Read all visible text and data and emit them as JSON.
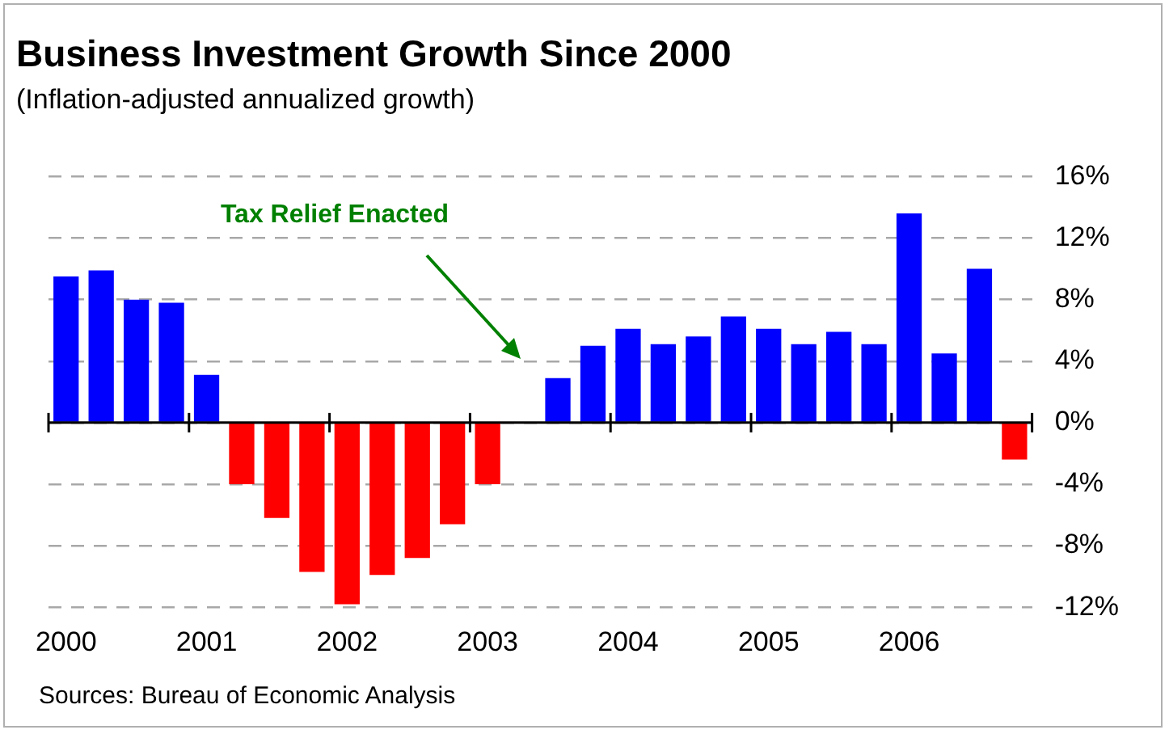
{
  "chart_data": {
    "type": "bar",
    "title": "Business Investment Growth Since 2000",
    "subtitle": "(Inflation-adjusted annualized growth)",
    "categories": [
      "2000",
      null,
      null,
      null,
      "2001",
      null,
      null,
      null,
      "2002",
      null,
      null,
      null,
      "2003",
      null,
      null,
      null,
      "2004",
      null,
      null,
      null,
      "2005",
      null,
      null,
      null,
      "2006",
      null,
      null,
      null
    ],
    "values": [
      9.5,
      9.9,
      8.0,
      7.8,
      3.1,
      -4.0,
      -6.2,
      -9.7,
      -11.8,
      -9.9,
      -8.8,
      -6.6,
      -4.0,
      null,
      2.9,
      5.0,
      6.1,
      5.1,
      5.6,
      6.9,
      6.1,
      5.1,
      5.9,
      5.1,
      13.6,
      4.5,
      10.0,
      -2.4
    ],
    "colors": [
      "#0000ff",
      "#0000ff",
      "#0000ff",
      "#0000ff",
      "#0000ff",
      "#ff0000",
      "#ff0000",
      "#ff0000",
      "#ff0000",
      "#ff0000",
      "#ff0000",
      "#ff0000",
      "#ff0000",
      "#ff0000",
      "#0000ff",
      "#0000ff",
      "#0000ff",
      "#0000ff",
      "#0000ff",
      "#0000ff",
      "#0000ff",
      "#0000ff",
      "#0000ff",
      "#0000ff",
      "#0000ff",
      "#0000ff",
      "#0000ff",
      "#ff0000"
    ],
    "ylim": [
      -12,
      16
    ],
    "yticks": [
      {
        "value": -12,
        "label": "-12%"
      },
      {
        "value": -8,
        "label": "-8%"
      },
      {
        "value": -4,
        "label": "-4%"
      },
      {
        "value": 0,
        "label": "0%"
      },
      {
        "value": 4,
        "label": "4%"
      },
      {
        "value": 8,
        "label": "8%"
      },
      {
        "value": 12,
        "label": "12%"
      },
      {
        "value": 16,
        "label": "16%"
      }
    ],
    "grid": "y",
    "legend": false,
    "annotations": [
      "Tax Relief Enacted",
      "Sources: Bureau of Economic Analysis"
    ]
  }
}
